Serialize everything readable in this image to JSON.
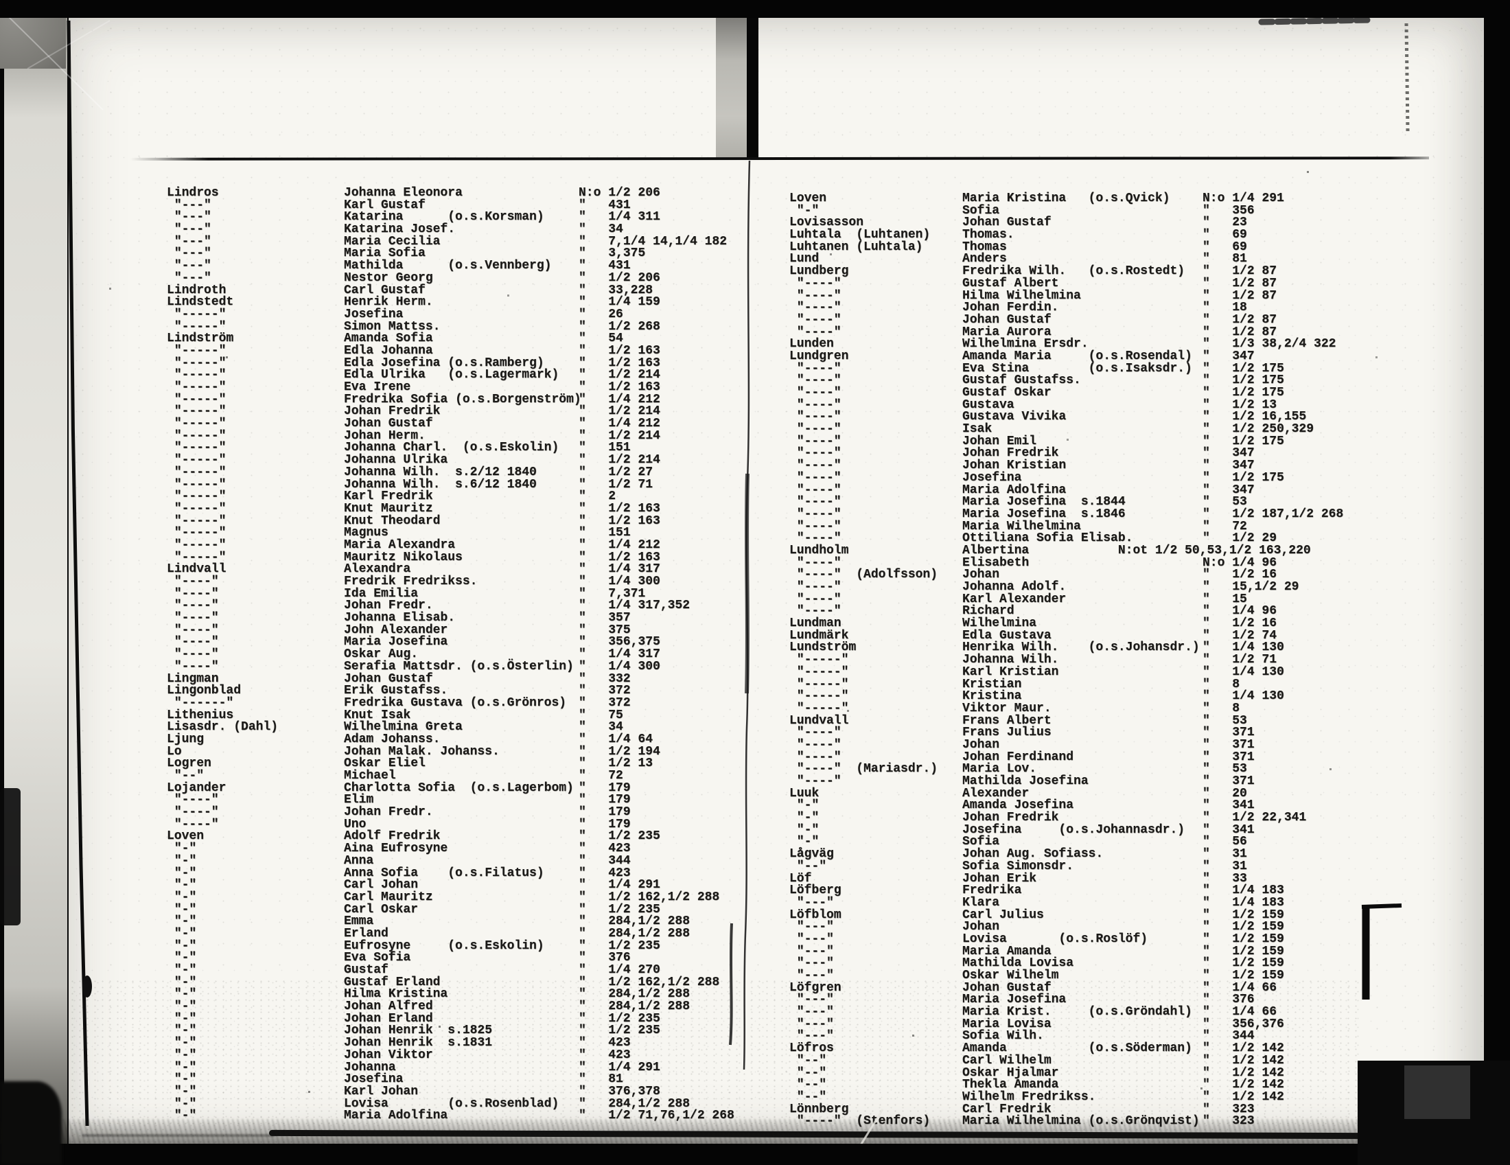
{
  "document": {
    "kind_label": "scanned typewritten surname index, two-page spread",
    "number_prefix_first": "N:o",
    "ditto_mark": "\"",
    "colors": {
      "film_black": "#060606",
      "paper": "#f7f6f1",
      "ink": "#1b1a18",
      "film_edge_gray": "#c2c1bb"
    },
    "pages": [
      {
        "side": "left",
        "rows": [
          [
            "Lindros",
            "Johanna Eleonora",
            "N:o 1/2 206"
          ],
          [
            " \"---\"",
            "Karl Gustaf",
            "\"   431"
          ],
          [
            " \"---\"",
            "Katarina      (o.s.Korsman)",
            "\"   1/4 311"
          ],
          [
            " \"---\"",
            "Katarina Josef.",
            "\"   34"
          ],
          [
            " \"---\"",
            "Maria Cecilia",
            "\"   7,1/4 14,1/4 182"
          ],
          [
            " \"---\"",
            "Maria Sofia",
            "\"   3,375"
          ],
          [
            " \"---\"",
            "Mathilda      (o.s.Vennberg)",
            "\"   431"
          ],
          [
            " \"---\"",
            "Nestor Georg",
            "\"   1/2 206"
          ],
          [
            "Lindroth",
            "Carl Gustaf",
            "\"   33,228"
          ],
          [
            "Lindstedt",
            "Henrik Herm.",
            "\"   1/4 159"
          ],
          [
            " \"-----\"",
            "Josefina",
            "\"   26"
          ],
          [
            " \"-----\"",
            "Simon Mattss.",
            "\"   1/2 268"
          ],
          [
            "Lindström",
            "Amanda Sofia",
            "\"   54"
          ],
          [
            " \"-----\"",
            "Edla Johanna",
            "\"   1/2 163"
          ],
          [
            " \"-----\"",
            "Edla Josefina (o.s.Ramberg)",
            "\"   1/2 163"
          ],
          [
            " \"-----\"",
            "Edla Ulrika   (o.s.Lagermark)",
            "\"   1/2 214"
          ],
          [
            " \"-----\"",
            "Eva Irene",
            "\"   1/2 163"
          ],
          [
            " \"-----\"",
            "Fredrika Sofia (o.s.Borgenström)",
            "\"   1/4 212"
          ],
          [
            " \"-----\"",
            "Johan Fredrik",
            "\"   1/2 214"
          ],
          [
            " \"-----\"",
            "Johan Gustaf",
            "\"   1/4 212"
          ],
          [
            " \"-----\"",
            "Johan Herm.",
            "\"   1/2 214"
          ],
          [
            " \"-----\"",
            "Johanna Charl.  (o.s.Eskolin)",
            "\"   151"
          ],
          [
            " \"-----\"",
            "Johanna Ulrika",
            "\"   1/2 214"
          ],
          [
            " \"-----\"",
            "Johanna Wilh.  s.2/12 1840",
            "\"   1/2 27"
          ],
          [
            " \"-----\"",
            "Johanna Wilh.  s.6/12 1840",
            "\"   1/2 71"
          ],
          [
            " \"-----\"",
            "Karl Fredrik",
            "\"   2"
          ],
          [
            " \"-----\"",
            "Knut Mauritz",
            "\"   1/2 163"
          ],
          [
            " \"-----\"",
            "Knut Theodard",
            "\"   1/2 163"
          ],
          [
            " \"-----\"",
            "Magnus",
            "\"   151"
          ],
          [
            " \"-----\"",
            "Maria Alexandra",
            "\"   1/4 212"
          ],
          [
            " \"-----\"",
            "Mauritz Nikolaus",
            "\"   1/2 163"
          ],
          [
            "Lindvall",
            "Alexandra",
            "\"   1/4 317"
          ],
          [
            " \"----\"",
            "Fredrik Fredrikss.",
            "\"   1/4 300"
          ],
          [
            " \"----\"",
            "Ida Emilia",
            "\"   7,371"
          ],
          [
            " \"----\"",
            "Johan Fredr.",
            "\"   1/4 317,352"
          ],
          [
            " \"----\"",
            "Johanna Elisab.",
            "\"   357"
          ],
          [
            " \"----\"",
            "John Alexander",
            "\"   375"
          ],
          [
            " \"----\"",
            "Maria Josefina",
            "\"   356,375"
          ],
          [
            " \"----\"",
            "Oskar Aug.",
            "\"   1/4 317"
          ],
          [
            " \"----\"",
            "Serafia Mattsdr. (o.s.Österlin)",
            "\"   1/4 300"
          ],
          [
            "Lingman",
            "Johan Gustaf",
            "\"   332"
          ],
          [
            "Lingonblad",
            "Erik Gustafss.",
            "\"   372"
          ],
          [
            " \"------\"",
            "Fredrika Gustava (o.s.Grönros)",
            "\"   372"
          ],
          [
            "Lithenius",
            "Knut Isak",
            "\"   75"
          ],
          [
            "Lisasdr. (Dahl)",
            "Wilhelmina Greta",
            "\"   34"
          ],
          [
            "Ljung",
            "Adam Johanss.",
            "\"   1/4 64"
          ],
          [
            "Lo",
            "Johan Malak. Johanss.",
            "\"   1/2 194"
          ],
          [
            "Logren",
            "Oskar Eliel",
            "\"   1/2 13"
          ],
          [
            " \"--\"",
            "Michael",
            "\"   72"
          ],
          [
            "Lojander",
            "Charlotta Sofia  (o.s.Lagerbom)",
            "\"   179"
          ],
          [
            " \"----\"",
            "Elim",
            "\"   179"
          ],
          [
            " \"----\"",
            "Johan Fredr.",
            "\"   179"
          ],
          [
            " \"----\"",
            "Uno",
            "\"   179"
          ],
          [
            "Loven",
            "Adolf Fredrik",
            "\"   1/2 235"
          ],
          [
            " \"-\"",
            "Aina Eufrosyne",
            "\"   423"
          ],
          [
            " \"-\"",
            "Anna",
            "\"   344"
          ],
          [
            " \"-\"",
            "Anna Sofia    (o.s.Filatus)",
            "\"   423"
          ],
          [
            " \"-\"",
            "Carl Johan",
            "\"   1/4 291"
          ],
          [
            " \"-\"",
            "Carl Mauritz",
            "\"   1/2 162,1/2 288"
          ],
          [
            " \"-\"",
            "Carl Oskar",
            "\"   1/2 235"
          ],
          [
            " \"-\"",
            "Emma",
            "\"   284,1/2 288"
          ],
          [
            " \"-\"",
            "Erland",
            "\"   284,1/2 288"
          ],
          [
            " \"-\"",
            "Eufrosyne     (o.s.Eskolin)",
            "\"   1/2 235"
          ],
          [
            " \"-\"",
            "Eva Sofia",
            "\"   376"
          ],
          [
            " \"-\"",
            "Gustaf",
            "\"   1/4 270"
          ],
          [
            " \"-\"",
            "Gustaf Erland",
            "\"   1/2 162,1/2 288"
          ],
          [
            " \"-\"",
            "Hilma Kristina",
            "\"   284,1/2 288"
          ],
          [
            " \"-\"",
            "Johan Alfred",
            "\"   284,1/2 288"
          ],
          [
            " \"-\"",
            "Johan Erland",
            "\"   1/2 235"
          ],
          [
            " \"-\"",
            "Johan Henrik  s.1825",
            "\"   1/2 235"
          ],
          [
            " \"-\"",
            "Johan Henrik  s.1831",
            "\"   423"
          ],
          [
            " \"-\"",
            "Johan Viktor",
            "\"   423"
          ],
          [
            " \"-\"",
            "Johanna",
            "\"   1/4 291"
          ],
          [
            " \"-\"",
            "Josefina",
            "\"   81"
          ],
          [
            " \"-\"",
            "Karl Johan",
            "\"   376,378"
          ],
          [
            " \"-\"",
            "Lovisa        (o.s.Rosenblad)",
            "\"   284,1/2 288"
          ],
          [
            " \"-\"",
            "Maria Adolfina",
            "\"   1/2 71,76,1/2 268"
          ]
        ]
      },
      {
        "side": "right",
        "rows": [
          [
            "Loven",
            "Maria Kristina   (o.s.Qvick)",
            "N:o 1/4 291"
          ],
          [
            " \"-\"",
            "Sofia",
            "\"   356"
          ],
          [
            "Lovisasson",
            "Johan Gustaf",
            "\"   23"
          ],
          [
            "Luhtala  (Luhtanen)",
            "Thomas.",
            "\"   69"
          ],
          [
            "Luhtanen (Luhtala)",
            "Thomas",
            "\"   69"
          ],
          [
            "Lund",
            "Anders",
            "\"   81"
          ],
          [
            "Lundberg",
            "Fredrika Wilh.   (o.s.Rostedt)",
            "\"   1/2 87"
          ],
          [
            " \"----\"",
            "Gustaf Albert",
            "\"   1/2 87"
          ],
          [
            " \"----\"",
            "Hilma Wilhelmina",
            "\"   1/2 87"
          ],
          [
            " \"----\"",
            "Johan Ferdin.",
            "\"   18"
          ],
          [
            " \"----\"",
            "Johan Gustaf",
            "\"   1/2 87"
          ],
          [
            " \"----\"",
            "Maria Aurora",
            "\"   1/2 87"
          ],
          [
            "Lunden",
            "Wilhelmina Ersdr.",
            "\"   1/3 38,2/4 322"
          ],
          [
            "Lundgren",
            "Amanda Maria     (o.s.Rosendal)",
            "\"   347"
          ],
          [
            " \"----\"",
            "Eva Stina        (o.s.Isaksdr.)",
            "\"   1/2 175"
          ],
          [
            " \"----\"",
            "Gustaf Gustafss.",
            "\"   1/2 175"
          ],
          [
            " \"----\"",
            "Gustaf Oskar",
            "\"   1/2 175"
          ],
          [
            " \"----\"",
            "Gustava",
            "\"   1/2 13"
          ],
          [
            " \"----\"",
            "Gustava Vivika",
            "\"   1/2 16,155"
          ],
          [
            " \"----\"",
            "Isak",
            "\"   1/2 250,329"
          ],
          [
            " \"----\"",
            "Johan Emil",
            "\"   1/2 175"
          ],
          [
            " \"----\"",
            "Johan Fredrik",
            "\"   347"
          ],
          [
            " \"----\"",
            "Johan Kristian",
            "\"   347"
          ],
          [
            " \"----\"",
            "Josefina",
            "\"   1/2 175"
          ],
          [
            " \"----\"",
            "Maria Adolfina",
            "\"   347"
          ],
          [
            " \"----\"",
            "Maria Josefina  s.1844",
            "\"   53"
          ],
          [
            " \"----\"",
            "Maria Josefina  s.1846",
            "\"   1/2 187,1/2 268"
          ],
          [
            " \"----\"",
            "Maria Wilhelmina",
            "\"   72"
          ],
          [
            " \"----\"",
            "Ottiliana Sofia Elisab.",
            "\"   1/2 29"
          ],
          [
            "Lundholm",
            "Albertina            N:ot 1/2 50,53,1/2 163,220",
            ""
          ],
          [
            " \"----\"",
            "Elisabeth",
            "N:o 1/4 96"
          ],
          [
            " \"----\"  (Adolfsson)",
            "Johan",
            "\"   1/2 16"
          ],
          [
            " \"----\"",
            "Johanna Adolf.",
            "\"   15,1/2 29"
          ],
          [
            " \"----\"",
            "Karl Alexander",
            "\"   15"
          ],
          [
            " \"----\"",
            "Richard",
            "\"   1/4 96"
          ],
          [
            "Lundman",
            "Wilhelmina",
            "\"   1/2 16"
          ],
          [
            "Lundmärk",
            "Edla Gustava",
            "\"   1/2 74"
          ],
          [
            "Lundström",
            "Henrika Wilh.    (o.s.Johansdr.)",
            "\"   1/4 130"
          ],
          [
            " \"-----\"",
            "Johanna Wilh.",
            "\"   1/2 71"
          ],
          [
            " \"-----\"",
            "Karl Kristian",
            "\"   1/4 130"
          ],
          [
            " \"-----\"",
            "Kristian",
            "\"   8"
          ],
          [
            " \"-----\"",
            "Kristina",
            "\"   1/4 130"
          ],
          [
            " \"-----\"",
            "Viktor Maur.",
            "\"   8"
          ],
          [
            "Lundvall",
            "Frans Albert",
            "\"   53"
          ],
          [
            " \"----\"",
            "Frans Julius",
            "\"   371"
          ],
          [
            " \"----\"",
            "Johan",
            "\"   371"
          ],
          [
            " \"----\"",
            "Johan Ferdinand",
            "\"   371"
          ],
          [
            " \"----\"  (Mariasdr.)",
            "Maria Lov.",
            "\"   53"
          ],
          [
            " \"----\"",
            "Mathilda Josefina",
            "\"   371"
          ],
          [
            "Luuk",
            "Alexander",
            "\"   20"
          ],
          [
            " \"-\"",
            "Amanda Josefina",
            "\"   341"
          ],
          [
            " \"-\"",
            "Johan Fredrik",
            "\"   1/2 22,341"
          ],
          [
            " \"-\"",
            "Josefina     (o.s.Johannasdr.)",
            "\"   341"
          ],
          [
            " \"-\"",
            "Sofia",
            "\"   56"
          ],
          [
            "Lågväg",
            "Johan Aug. Sofiass.",
            "\"   31"
          ],
          [
            " \"--\"",
            "Sofia Simonsdr.",
            "\"   31"
          ],
          [
            "Löf",
            "Johan Erik",
            "\"   33"
          ],
          [
            "Löfberg",
            "Fredrika",
            "\"   1/4 183"
          ],
          [
            " \"---\"",
            "Klara",
            "\"   1/4 183"
          ],
          [
            "Löfblom",
            "Carl Julius",
            "\"   1/2 159"
          ],
          [
            " \"---\"",
            "Johan",
            "\"   1/2 159"
          ],
          [
            " \"---\"",
            "Lovisa       (o.s.Roslöf)",
            "\"   1/2 159"
          ],
          [
            " \"---\"",
            "Maria Amanda",
            "\"   1/2 159"
          ],
          [
            " \"---\"",
            "Mathilda Lovisa",
            "\"   1/2 159"
          ],
          [
            " \"---\"",
            "Oskar Wilhelm",
            "\"   1/2 159"
          ],
          [
            "Löfgren",
            "Johan Gustaf",
            "\"   1/4 66"
          ],
          [
            " \"---\"",
            "Maria Josefina",
            "\"   376"
          ],
          [
            " \"---\"",
            "Maria Krist.     (o.s.Gröndahl)",
            "\"   1/4 66"
          ],
          [
            " \"---\"",
            "Maria Lovisa",
            "\"   356,376"
          ],
          [
            " \"---\"",
            "Sofia Wilh.",
            "\"   344"
          ],
          [
            "Löfros",
            "Amanda           (o.s.Söderman)",
            "\"   1/2 142"
          ],
          [
            " \"--\"",
            "Carl Wilhelm",
            "\"   1/2 142"
          ],
          [
            " \"--\"",
            "Oskar Hjalmar",
            "\"   1/2 142"
          ],
          [
            " \"--\"",
            "Thekla Amanda",
            "\"   1/2 142"
          ],
          [
            " \"--\"",
            "Wilhelm Fredrikss.",
            "\"   1/2 142"
          ],
          [
            "Lönnberg",
            "Carl Fredrik",
            "\"   323"
          ],
          [
            " \"----\"  (Stenfors)",
            "Maria Wilhelmina (o.s.Grönqvist)",
            "\"   323"
          ]
        ]
      }
    ]
  }
}
